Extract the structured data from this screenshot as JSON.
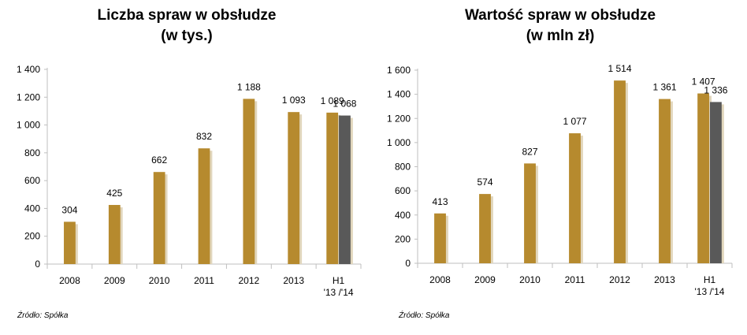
{
  "colors": {
    "gold": "#B68A2E",
    "gray": "#595959",
    "shadow": "#E1D6BC",
    "axis": "#BFBFBF"
  },
  "chart_data": [
    {
      "type": "bar",
      "title_line1": "Liczba spraw w obsłudze",
      "title_line2": "(w tys.)",
      "categories": [
        [
          "2008"
        ],
        [
          "2009"
        ],
        [
          "2010"
        ],
        [
          "2011"
        ],
        [
          "2012"
        ],
        [
          "2013"
        ],
        [
          "H1",
          "'13 /'14"
        ]
      ],
      "values": [
        304,
        425,
        662,
        832,
        1188,
        1093,
        1089
      ],
      "value_labels": [
        "304",
        "425",
        "662",
        "832",
        "1 188",
        "1 093",
        "1 089"
      ],
      "extra_bar": {
        "category_index": 6,
        "value": 1068,
        "label": "1 068",
        "color": "#595959"
      },
      "ylim": [
        0,
        1400
      ],
      "y_ticks": [
        0,
        200,
        400,
        600,
        800,
        1000,
        1200,
        1400
      ],
      "y_tick_labels": [
        "0",
        "200",
        "400",
        "600",
        "800",
        "1 000",
        "1 200",
        "1 400"
      ],
      "grid": false,
      "source": "Źródło: Spółka"
    },
    {
      "type": "bar",
      "title_line1": "Wartość spraw w obsłudze",
      "title_line2": "(w mln zł)",
      "categories": [
        [
          "2008"
        ],
        [
          "2009"
        ],
        [
          "2010"
        ],
        [
          "2011"
        ],
        [
          "2012"
        ],
        [
          "2013"
        ],
        [
          "H1",
          "'13 /'14"
        ]
      ],
      "values": [
        413,
        574,
        827,
        1077,
        1514,
        1361,
        1407
      ],
      "value_labels": [
        "413",
        "574",
        "827",
        "1 077",
        "1 514",
        "1 361",
        "1 407"
      ],
      "extra_bar": {
        "category_index": 6,
        "value": 1336,
        "label": "1 336",
        "color": "#595959"
      },
      "ylim": [
        0,
        1600
      ],
      "y_ticks": [
        0,
        200,
        400,
        600,
        800,
        1000,
        1200,
        1400,
        1600
      ],
      "y_tick_labels": [
        "0",
        "200",
        "400",
        "600",
        "800",
        "1 000",
        "1 200",
        "1 400",
        "1 600"
      ],
      "grid": false,
      "source": "Źródło: Spółka"
    }
  ]
}
